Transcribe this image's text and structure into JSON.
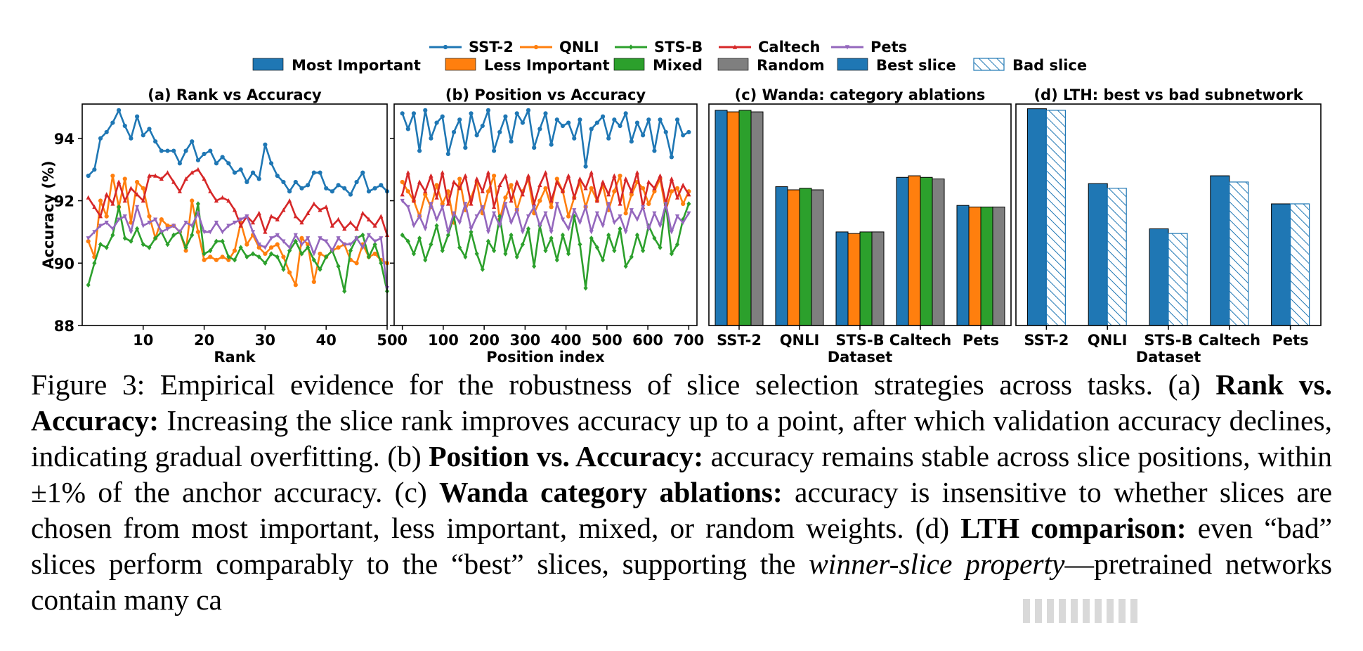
{
  "legend": {
    "lines": [
      {
        "label": "SST-2",
        "color": "#1f77b4",
        "marker": "circle"
      },
      {
        "label": "QNLI",
        "color": "#ff7f0e",
        "marker": "circle"
      },
      {
        "label": "STS-B",
        "color": "#2ca02c",
        "marker": "diamond"
      },
      {
        "label": "Caltech",
        "color": "#d62728",
        "marker": "triangle"
      },
      {
        "label": "Pets",
        "color": "#9467bd",
        "marker": "triangle-down"
      }
    ],
    "bars": [
      {
        "label": "Most Important",
        "color": "#1f77b4",
        "hatch": false
      },
      {
        "label": "Less Important",
        "color": "#ff7f0e",
        "hatch": false
      },
      {
        "label": "Mixed",
        "color": "#2ca02c",
        "hatch": false
      },
      {
        "label": "Random",
        "color": "#7f7f7f",
        "hatch": false
      },
      {
        "label": "Best slice",
        "color": "#1f77b4",
        "hatch": false
      },
      {
        "label": "Bad slice",
        "color": "#1f77b4",
        "hatch": true
      }
    ]
  },
  "chart_data": [
    {
      "type": "line",
      "title": "(a) Rank vs Accuracy",
      "xlabel": "Rank",
      "ylabel": "Accuracy (%)",
      "xlim": [
        0,
        50
      ],
      "ylim": [
        88,
        95.1
      ],
      "xticks": [
        10,
        20,
        30,
        40,
        50
      ],
      "yticks": [
        88,
        90,
        92,
        94
      ],
      "x": [
        1,
        2,
        3,
        4,
        5,
        6,
        7,
        8,
        9,
        10,
        11,
        12,
        13,
        14,
        15,
        16,
        17,
        18,
        19,
        20,
        21,
        22,
        23,
        24,
        25,
        26,
        27,
        28,
        29,
        30,
        31,
        32,
        33,
        34,
        35,
        36,
        37,
        38,
        39,
        40,
        41,
        42,
        43,
        44,
        45,
        46,
        47,
        48,
        49,
        50
      ],
      "series": [
        {
          "name": "SST-2",
          "color": "#1f77b4",
          "values": [
            92.8,
            93.0,
            94.0,
            94.2,
            94.5,
            94.9,
            94.4,
            94.0,
            94.7,
            94.1,
            94.3,
            93.9,
            93.6,
            93.6,
            93.6,
            93.2,
            93.6,
            93.9,
            93.3,
            93.5,
            93.6,
            93.2,
            93.4,
            93.2,
            92.9,
            93.0,
            92.6,
            92.9,
            92.7,
            93.8,
            93.2,
            92.8,
            92.6,
            92.3,
            92.6,
            92.4,
            92.5,
            92.9,
            92.9,
            92.4,
            92.3,
            92.5,
            92.4,
            92.2,
            92.6,
            92.9,
            92.3,
            92.4,
            92.5,
            92.3
          ]
        },
        {
          "name": "QNLI",
          "color": "#ff7f0e",
          "values": [
            90.7,
            90.2,
            92.0,
            91.5,
            92.8,
            91.8,
            92.7,
            91.3,
            92.6,
            92.4,
            91.5,
            90.8,
            91.4,
            91.2,
            91.2,
            91.0,
            90.4,
            92.0,
            91.0,
            90.1,
            90.2,
            90.1,
            90.2,
            90.1,
            90.4,
            91.3,
            90.6,
            90.9,
            90.5,
            90.3,
            90.5,
            90.6,
            90.2,
            89.7,
            89.3,
            90.8,
            90.6,
            89.4,
            90.3,
            90.2,
            90.4,
            90.5,
            90.6,
            90.1,
            90.0,
            90.6,
            90.2,
            90.3,
            90.1,
            90.0
          ]
        },
        {
          "name": "STS-B",
          "color": "#2ca02c",
          "values": [
            89.3,
            90.0,
            90.6,
            90.5,
            90.9,
            91.8,
            90.8,
            90.7,
            91.1,
            90.6,
            90.5,
            90.8,
            91.0,
            90.6,
            90.9,
            91.0,
            90.5,
            90.9,
            91.9,
            90.3,
            90.4,
            90.7,
            90.7,
            90.2,
            90.1,
            90.5,
            90.2,
            90.3,
            90.2,
            90.0,
            90.3,
            90.2,
            89.8,
            90.4,
            90.7,
            90.3,
            90.5,
            90.1,
            89.8,
            90.2,
            90.4,
            89.9,
            89.1,
            90.4,
            90.8,
            90.9,
            90.2,
            90.6,
            90.0,
            89.1
          ]
        },
        {
          "name": "Caltech",
          "color": "#d62728",
          "values": [
            92.1,
            91.8,
            91.5,
            92.2,
            91.9,
            92.6,
            92.0,
            92.4,
            92.2,
            92.0,
            92.8,
            92.8,
            92.7,
            92.9,
            92.6,
            92.3,
            92.7,
            92.9,
            93.0,
            92.7,
            92.3,
            92.0,
            92.1,
            92.0,
            91.7,
            91.2,
            91.5,
            91.3,
            91.6,
            91.0,
            91.5,
            91.4,
            91.7,
            92.0,
            91.5,
            91.3,
            91.6,
            91.9,
            91.7,
            91.8,
            91.2,
            91.4,
            91.1,
            91.3,
            91.1,
            91.6,
            91.4,
            91.2,
            91.5,
            90.9
          ]
        },
        {
          "name": "Pets",
          "color": "#9467bd",
          "values": [
            90.8,
            91.0,
            91.2,
            91.3,
            91.1,
            91.4,
            91.5,
            91.0,
            91.8,
            91.2,
            91.3,
            91.4,
            91.0,
            91.1,
            91.2,
            91.0,
            91.3,
            91.2,
            91.6,
            91.0,
            91.0,
            91.3,
            91.0,
            91.2,
            91.3,
            91.4,
            91.5,
            91.0,
            90.6,
            90.5,
            90.8,
            90.9,
            90.7,
            90.5,
            90.9,
            90.6,
            90.8,
            90.3,
            90.8,
            90.7,
            90.4,
            90.8,
            90.6,
            90.6,
            90.8,
            90.5,
            90.9,
            90.7,
            90.8,
            89.2
          ]
        }
      ]
    },
    {
      "type": "line",
      "title": "(b) Position vs Accuracy",
      "xlabel": "Position index",
      "ylabel": "",
      "xlim": [
        -20,
        720
      ],
      "ylim": [
        88,
        95.1
      ],
      "xticks": [
        0,
        100,
        200,
        300,
        400,
        500,
        600,
        700
      ],
      "yticks": [
        88,
        90,
        92,
        94
      ],
      "x": [
        0,
        14,
        28,
        42,
        56,
        70,
        84,
        98,
        112,
        126,
        140,
        154,
        168,
        182,
        196,
        210,
        224,
        238,
        252,
        266,
        280,
        294,
        308,
        322,
        336,
        350,
        364,
        378,
        392,
        406,
        420,
        434,
        448,
        462,
        476,
        490,
        504,
        518,
        532,
        546,
        560,
        574,
        588,
        602,
        616,
        630,
        644,
        658,
        672,
        686,
        700
      ],
      "series": [
        {
          "name": "SST-2",
          "color": "#1f77b4",
          "values": [
            94.8,
            94.3,
            94.8,
            93.6,
            94.9,
            94.0,
            94.5,
            94.7,
            93.5,
            94.2,
            94.6,
            93.7,
            94.8,
            94.1,
            94.4,
            94.9,
            93.6,
            94.2,
            94.7,
            93.9,
            94.8,
            94.5,
            94.9,
            93.7,
            94.3,
            94.8,
            93.8,
            94.6,
            94.4,
            94.5,
            94.0,
            94.6,
            93.1,
            94.3,
            94.5,
            94.7,
            94.0,
            94.6,
            94.4,
            94.8,
            93.9,
            94.5,
            94.1,
            94.6,
            93.6,
            94.6,
            94.2,
            93.4,
            94.6,
            94.1,
            94.2
          ]
        },
        {
          "name": "QNLI",
          "color": "#ff7f0e",
          "values": [
            92.6,
            92.3,
            92.0,
            91.5,
            92.2,
            91.8,
            92.5,
            91.9,
            92.3,
            91.3,
            92.7,
            91.7,
            92.1,
            92.6,
            91.6,
            92.3,
            92.8,
            91.4,
            92.1,
            92.5,
            91.7,
            92.3,
            92.7,
            91.6,
            92.0,
            92.4,
            91.8,
            92.7,
            92.3,
            91.5,
            92.1,
            92.6,
            91.8,
            92.4,
            92.0,
            92.5,
            91.7,
            92.3,
            92.8,
            91.6,
            92.2,
            92.6,
            92.4,
            91.9,
            92.3,
            92.7,
            91.7,
            92.3,
            92.4,
            91.9,
            92.3
          ]
        },
        {
          "name": "STS-B",
          "color": "#2ca02c",
          "values": [
            90.9,
            90.7,
            90.3,
            90.8,
            90.1,
            90.6,
            91.2,
            90.4,
            90.9,
            91.5,
            90.5,
            90.2,
            91.0,
            90.3,
            89.8,
            90.7,
            90.4,
            91.5,
            90.3,
            90.9,
            90.2,
            90.6,
            91.1,
            89.9,
            91.2,
            90.4,
            90.8,
            90.1,
            90.9,
            90.3,
            91.5,
            90.6,
            89.2,
            90.8,
            90.5,
            90.1,
            90.9,
            90.4,
            91.1,
            89.9,
            90.2,
            90.9,
            90.4,
            91.2,
            90.8,
            90.5,
            91.9,
            90.3,
            90.6,
            91.4,
            91.9
          ]
        },
        {
          "name": "Caltech",
          "color": "#d62728",
          "values": [
            92.2,
            92.9,
            92.0,
            92.6,
            92.3,
            92.8,
            92.1,
            92.9,
            91.9,
            92.6,
            92.4,
            92.8,
            91.9,
            92.7,
            92.3,
            92.9,
            91.8,
            92.5,
            92.8,
            92.0,
            92.6,
            92.2,
            92.8,
            91.9,
            92.5,
            92.9,
            92.0,
            92.6,
            92.3,
            92.8,
            92.1,
            92.7,
            92.4,
            92.9,
            92.0,
            92.6,
            92.2,
            92.8,
            91.9,
            92.7,
            92.3,
            92.9,
            91.8,
            92.6,
            92.4,
            92.8,
            91.9,
            92.7,
            92.1,
            92.5,
            92.2
          ]
        },
        {
          "name": "Pets",
          "color": "#9467bd",
          "values": [
            92.0,
            91.8,
            91.2,
            91.5,
            91.1,
            91.9,
            91.4,
            91.8,
            91.0,
            91.6,
            91.3,
            91.9,
            91.1,
            91.5,
            91.8,
            91.0,
            91.6,
            91.2,
            91.9,
            91.3,
            91.7,
            91.0,
            91.5,
            91.8,
            91.2,
            91.6,
            91.0,
            91.9,
            91.4,
            91.1,
            91.7,
            91.3,
            91.8,
            91.0,
            91.6,
            91.2,
            91.9,
            91.3,
            91.5,
            91.0,
            91.7,
            91.4,
            91.8,
            91.1,
            91.6,
            91.2,
            91.9,
            91.0,
            91.5,
            91.3,
            91.6
          ]
        }
      ]
    },
    {
      "type": "bar",
      "title": "(c) Wanda: category ablations",
      "xlabel": "Dataset",
      "ylabel": "",
      "ylim": [
        88,
        95.1
      ],
      "categories": [
        "SST-2",
        "QNLI",
        "STS-B",
        "Caltech",
        "Pets"
      ],
      "series": [
        {
          "name": "Most Important",
          "color": "#1f77b4",
          "values": [
            94.9,
            92.45,
            91.0,
            92.75,
            91.85
          ]
        },
        {
          "name": "Less Important",
          "color": "#ff7f0e",
          "values": [
            94.85,
            92.35,
            90.95,
            92.8,
            91.8
          ]
        },
        {
          "name": "Mixed",
          "color": "#2ca02c",
          "values": [
            94.9,
            92.4,
            91.0,
            92.75,
            91.8
          ]
        },
        {
          "name": "Random",
          "color": "#7f7f7f",
          "values": [
            94.85,
            92.35,
            91.0,
            92.7,
            91.8
          ]
        }
      ]
    },
    {
      "type": "bar",
      "title": "(d) LTH: best vs bad subnetwork",
      "xlabel": "Dataset",
      "ylabel": "",
      "ylim": [
        88,
        95.1
      ],
      "categories": [
        "SST-2",
        "QNLI",
        "STS-B",
        "Caltech",
        "Pets"
      ],
      "series": [
        {
          "name": "Best slice",
          "color": "#1f77b4",
          "hatch": false,
          "values": [
            94.95,
            92.55,
            91.1,
            92.8,
            91.9
          ]
        },
        {
          "name": "Bad slice",
          "color": "#1f77b4",
          "hatch": true,
          "values": [
            94.9,
            92.4,
            90.95,
            92.6,
            91.9
          ]
        }
      ]
    }
  ],
  "caption": {
    "p1": "Figure 3: Empirical evidence for the robustness of slice selection strategies across tasks. (a) ",
    "b1": "Rank vs. Accuracy:",
    "p2": " Increasing the slice rank improves accuracy up to a point, after which validation accuracy declines, indicating gradual overfitting.  (b) ",
    "b2": "Position vs. Accuracy:",
    "p3": " accuracy remains stable across slice positions, within ±1% of the anchor accuracy. (c) ",
    "b3": "Wanda category ablations:",
    "p4": " accuracy is insensitive to whether slices are chosen from most important, less important, mixed, or random weights. (d) ",
    "b4": "LTH comparison:",
    "p5": " even “bad” slices perform comparably to the “best” slices, supporting the ",
    "i1": "winner-slice property",
    "p6": "—pretrained networks contain many ca"
  }
}
